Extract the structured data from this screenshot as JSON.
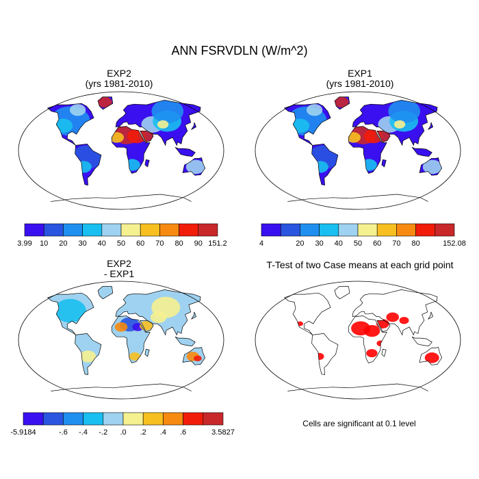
{
  "figure": {
    "title": "ANN FSRVDLN (W/m^2)",
    "panels": [
      {
        "id": "exp2",
        "title_lines": [
          "EXP2",
          "(yrs 1981-2010)"
        ]
      },
      {
        "id": "exp1",
        "title_lines": [
          "EXP1",
          "(yrs 1981-2010)"
        ]
      },
      {
        "id": "diff",
        "title_lines": [
          "EXP2",
          " - EXP1"
        ]
      },
      {
        "id": "ttest",
        "title_lines": [
          "T-Test of two Case means at each grid point"
        ]
      }
    ],
    "ttest_note": "Cells are significant at 0.1 level"
  },
  "colors": {
    "abs_scale": [
      "#3a10f0",
      "#2a55e0",
      "#1f8ff0",
      "#19bff0",
      "#9fd2f0",
      "#f5f090",
      "#f7c020",
      "#f78a10",
      "#f21c0a",
      "#c9282b"
    ],
    "diff_scale": [
      "#3a10f0",
      "#2a55e0",
      "#1f8ff0",
      "#19bff0",
      "#9fd2f0",
      "#f5f090",
      "#f7c020",
      "#f78a10",
      "#f21c0a",
      "#c9282b"
    ],
    "significant": "#ff0000",
    "map_outline": "#000000"
  },
  "chart_data": [
    {
      "type": "heatmap",
      "panel": "exp2",
      "title": "EXP2 (yrs 1981-2010)",
      "variable": "ANN FSRVDLN",
      "units": "W/m^2",
      "projection": "Robinson",
      "colorbar": {
        "labels": [
          "3.99",
          "10",
          "20",
          "30",
          "40",
          "50",
          "60",
          "70",
          "80",
          "90",
          "151.2"
        ],
        "n_colors": 10
      },
      "regions": [
        {
          "name": "Sahara / Arabia",
          "level": "high (80-151.2)"
        },
        {
          "name": "Greenland",
          "level": "high"
        },
        {
          "name": "Australia interior",
          "level": "moderate (40-60)"
        },
        {
          "name": "Tropics / oceans-adjacent land",
          "level": "low (3.99-20)"
        }
      ]
    },
    {
      "type": "heatmap",
      "panel": "exp1",
      "title": "EXP1 (yrs 1981-2010)",
      "variable": "ANN FSRVDLN",
      "units": "W/m^2",
      "projection": "Robinson",
      "colorbar": {
        "labels": [
          "4",
          "20",
          "30",
          "40",
          "50",
          "60",
          "70",
          "80",
          "152.08"
        ],
        "n_colors": 10
      },
      "regions": [
        {
          "name": "Sahara / Arabia",
          "level": "high (80-152.08)"
        },
        {
          "name": "Greenland",
          "level": "high"
        },
        {
          "name": "Australia interior",
          "level": "moderate (40-60)"
        },
        {
          "name": "Tropics / oceans-adjacent land",
          "level": "low (4-20)"
        }
      ]
    },
    {
      "type": "heatmap",
      "panel": "diff",
      "title": "EXP2 - EXP1",
      "projection": "Robinson",
      "colorbar": {
        "labels": [
          "-5.9184",
          "-.6",
          "-.4",
          "-.2",
          ".0",
          ".2",
          ".4",
          ".6",
          "3.5827"
        ],
        "n_colors": 10
      },
      "regions": [
        {
          "name": "Sahara",
          "level": "mixed (-5.9 to 3.58)"
        },
        {
          "name": "Australia",
          "level": "positive"
        },
        {
          "name": "Most land",
          "level": "near zero (-.2 to .2)"
        }
      ]
    },
    {
      "type": "heatmap",
      "panel": "ttest",
      "title": "T-Test of two Case means at each grid point",
      "significance_level": 0.1,
      "regions": [
        {
          "name": "North Africa / Sahel",
          "significant": true
        },
        {
          "name": "Middle East / Central Asia",
          "significant": true
        },
        {
          "name": "Australia",
          "significant": true
        },
        {
          "name": "South America (west)",
          "significant": true
        },
        {
          "name": "Southern Africa",
          "significant": true
        }
      ]
    }
  ]
}
